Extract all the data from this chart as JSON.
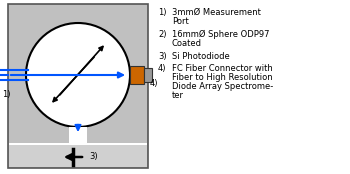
{
  "bg_color": "#ffffff",
  "box_facecolor": "#c0c0c0",
  "box_edgecolor": "#555555",
  "sphere_facecolor": "#ffffff",
  "sphere_edgecolor": "#000000",
  "arrow_blue": "#0055ff",
  "arrow_black": "#000000",
  "fiber_orange": "#cc6600",
  "fiber_gray": "#999999",
  "base_facecolor": "#d0d0d0",
  "label_1": "1)",
  "label_4": "4)",
  "label_3": "3)",
  "legend": [
    [
      "1)",
      "3mmØ Measurement Port"
    ],
    [
      "2)",
      "16mmØ Sphere ODP97\nCoated"
    ],
    [
      "3)",
      "Si Photodiode"
    ],
    [
      "4)",
      "FC Fiber Connector with\nFiber to High Resolution\nDiode Array Spectrome-\nter"
    ]
  ],
  "figw": 3.5,
  "figh": 1.74,
  "dpi": 100
}
